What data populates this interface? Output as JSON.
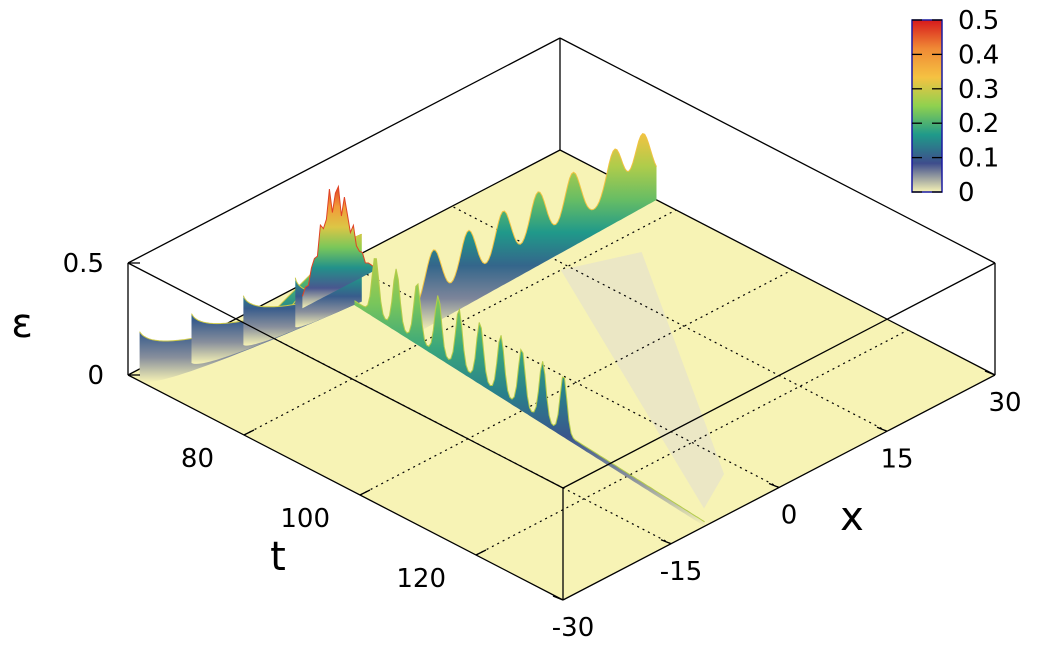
{
  "chart_data": {
    "type": "surface3d",
    "title": "",
    "xlabel": "x",
    "ylabel": "t",
    "zlabel": "ε",
    "x_ticks": [
      "-30",
      "-15",
      "0",
      "15",
      "30"
    ],
    "t_ticks": [
      "80",
      "100",
      "120"
    ],
    "z_ticks": [
      "0",
      "0.5"
    ],
    "colorbar": {
      "ticks": [
        "0",
        "0.1",
        "0.2",
        "0.3",
        "0.4",
        "0.5"
      ],
      "range": [
        0,
        0.5
      ],
      "colors": [
        "#f7f3b5",
        "#3e4d8c",
        "#1f9a8a",
        "#8fd14f",
        "#f5c242",
        "#f08a35",
        "#d7191c"
      ]
    },
    "xlim": [
      -30,
      30
    ],
    "tlim": [
      60,
      135
    ],
    "zlim": [
      0,
      0.5
    ],
    "grid": true,
    "features": {
      "incoming_pulses_x": [
        -30,
        -24,
        -18,
        -12
      ],
      "collision": {
        "x": -4,
        "t": 62,
        "z": 0.5
      },
      "transmitted_beam_t": 78,
      "transmitted_peaks_x": [
        -8,
        -2,
        3,
        8,
        13,
        18,
        24,
        28
      ],
      "transmitted_peak_z": 0.33,
      "emitted_beam_x": -4.5,
      "emitted_peaks_t": [
        72,
        76,
        80,
        84,
        88,
        92,
        96,
        100,
        104,
        108
      ],
      "emitted_peak_z": 0.26
    }
  }
}
